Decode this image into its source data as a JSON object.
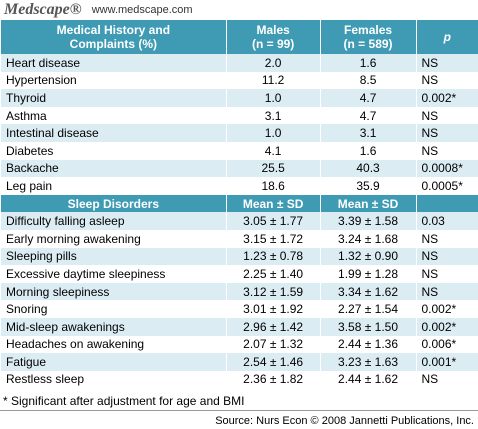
{
  "header": {
    "logo": "Medscape®",
    "url": "www.medscape.com"
  },
  "table": {
    "head": [
      [
        "Medical History and",
        "Complaints (%)"
      ],
      [
        "Males",
        "(n = 99)"
      ],
      [
        "Females",
        "(n = 589)"
      ],
      [
        "p"
      ]
    ],
    "rows": [
      [
        "Heart disease",
        "2.0",
        "1.6",
        "NS"
      ],
      [
        "Hypertension",
        "11.2",
        "8.5",
        "NS"
      ],
      [
        "Thyroid",
        "1.0",
        "4.7",
        "0.002*"
      ],
      [
        "Asthma",
        "3.1",
        "4.7",
        "NS"
      ],
      [
        "Intestinal disease",
        "1.0",
        "3.1",
        "NS"
      ],
      [
        "Diabetes",
        "4.1",
        "1.6",
        "NS"
      ],
      [
        "Backache",
        "25.5",
        "40.3",
        "0.0008*"
      ],
      [
        "Leg pain",
        "18.6",
        "35.9",
        "0.0005*"
      ]
    ],
    "head2": [
      "Sleep Disorders",
      "Mean ± SD",
      "Mean ± SD"
    ],
    "rows2": [
      [
        "Difficulty falling asleep",
        "3.05 ± 1.77",
        "3.39 ± 1.58",
        "0.03"
      ],
      [
        "Early morning awakening",
        "3.15 ± 1.72",
        "3.24 ± 1.68",
        "NS"
      ],
      [
        "Sleeping pills",
        "1.23 ± 0.78",
        "1.32 ± 0.90",
        "NS"
      ],
      [
        "Excessive daytime sleepiness",
        "2.25 ± 1.40",
        "1.99 ± 1.28",
        "NS"
      ],
      [
        "Morning sleepiness",
        "3.12 ± 1.59",
        "3.34 ± 1.62",
        "NS"
      ],
      [
        "Snoring",
        "3.01 ± 1.92",
        "2.27 ± 1.54",
        "0.002*"
      ],
      [
        "Mid-sleep awakenings",
        "2.96 ± 1.42",
        "3.58 ± 1.50",
        "0.002*"
      ],
      [
        "Headaches on awakening",
        "2.07 ± 1.32",
        "2.44 ± 1.36",
        "0.006*"
      ],
      [
        "Fatigue",
        "2.54 ± 1.46",
        "3.23 ± 1.63",
        "0.001*"
      ],
      [
        "Restless sleep",
        "2.36 ± 1.82",
        "2.44 ± 1.62",
        "NS"
      ]
    ]
  },
  "footnote": "* Significant after adjustment for age and BMI",
  "source": "Source: Nurs Econ © 2008 Jannetti Publications, Inc."
}
